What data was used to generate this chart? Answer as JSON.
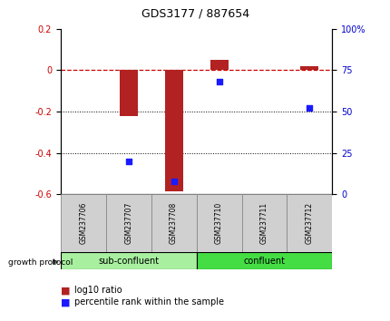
{
  "title": "GDS3177 / 887654",
  "samples": [
    "GSM237706",
    "GSM237707",
    "GSM237708",
    "GSM237710",
    "GSM237711",
    "GSM237712"
  ],
  "log10_ratio": [
    0.0,
    -0.22,
    -0.585,
    0.05,
    0.0,
    0.02
  ],
  "percentile_rank": [
    null,
    20,
    8,
    68,
    null,
    52
  ],
  "bar_color": "#b22222",
  "dot_color": "#1a1aff",
  "ylim_left": [
    -0.6,
    0.2
  ],
  "ylim_right": [
    0,
    100
  ],
  "group_label": "growth protocol",
  "zero_line_color": "#cc0000",
  "groups_def": [
    {
      "xmin": -0.5,
      "xmax": 2.5,
      "label": "sub-confluent",
      "color": "#a8f0a0"
    },
    {
      "xmin": 2.5,
      "xmax": 5.5,
      "label": "confluent",
      "color": "#44dd44"
    }
  ],
  "label_box_color": "#d0d0d0",
  "label_box_edge": "#888888",
  "bar_width": 0.4,
  "title_fontsize": 9,
  "tick_fontsize": 7,
  "sample_fontsize": 5.5,
  "group_fontsize": 7,
  "legend_fontsize": 7
}
